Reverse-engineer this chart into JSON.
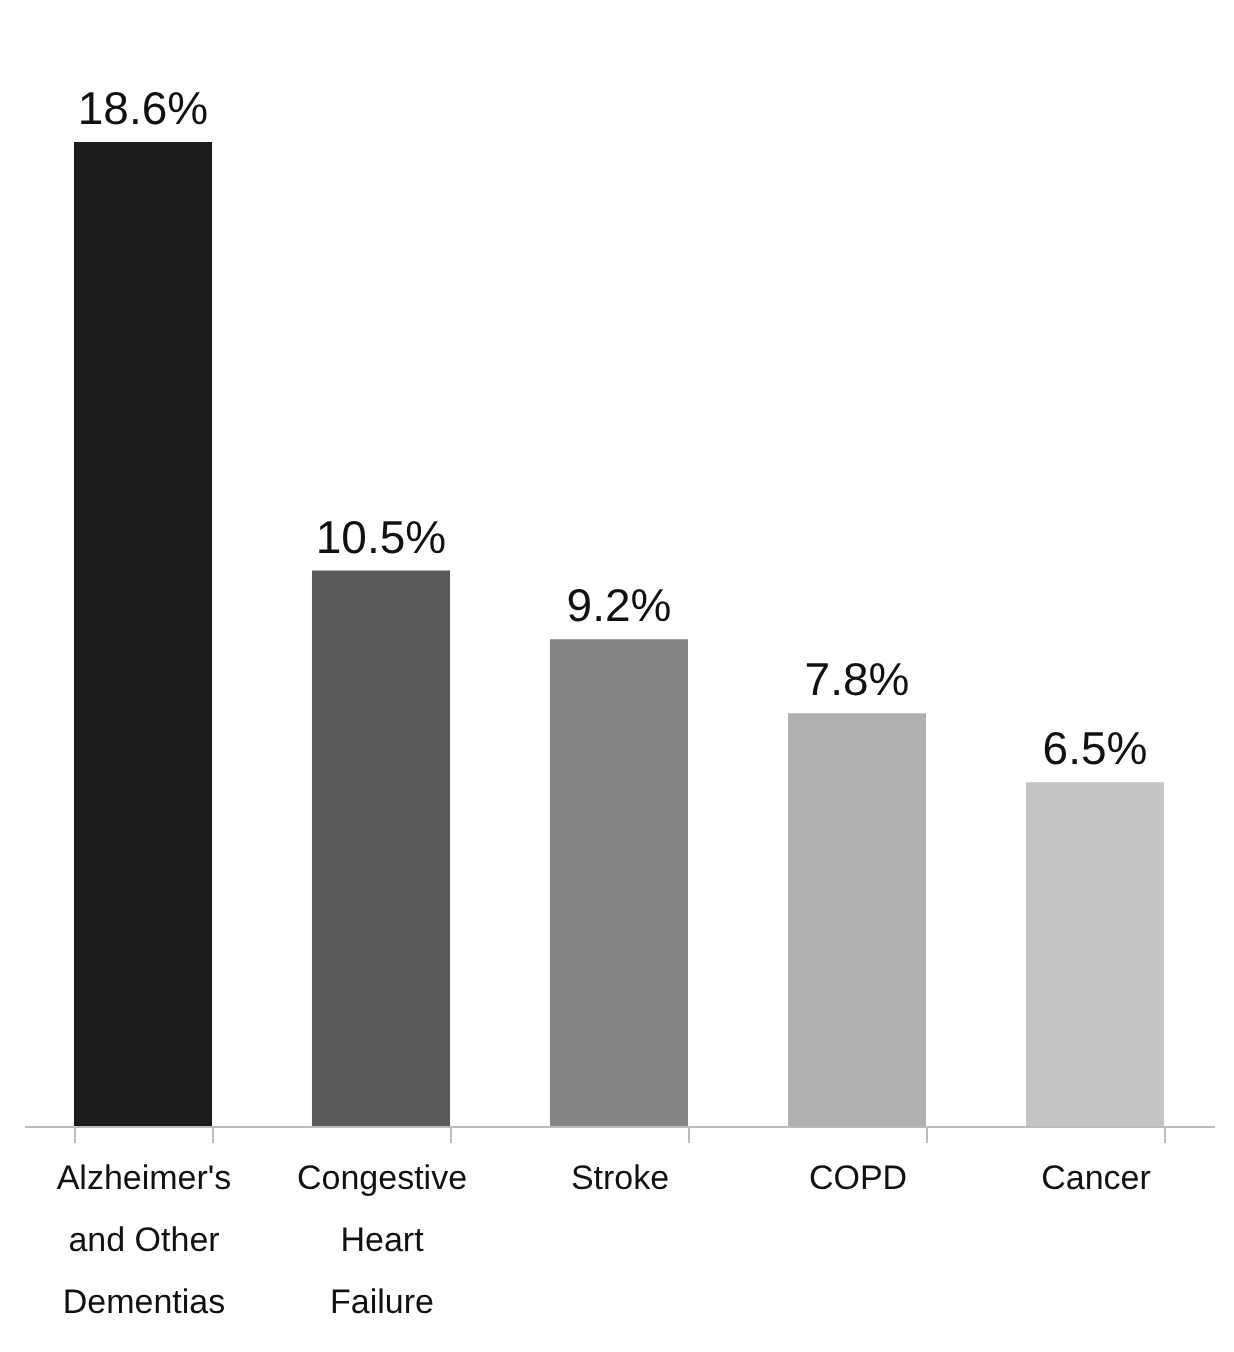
{
  "chart_data": {
    "type": "bar",
    "categories": [
      "Alzheimer's and Other Dementias",
      "Congestive Heart Failure",
      "Stroke",
      "COPD",
      "Cancer"
    ],
    "values": [
      18.6,
      10.5,
      9.2,
      7.8,
      6.5
    ],
    "colors": [
      "#1c1c1c",
      "#5a5a5a",
      "#858585",
      "#b0b0b0",
      "#c4c4c4"
    ],
    "value_labels": [
      "18.6%",
      "10.5%",
      "9.2%",
      "7.8%",
      "6.5%"
    ]
  }
}
